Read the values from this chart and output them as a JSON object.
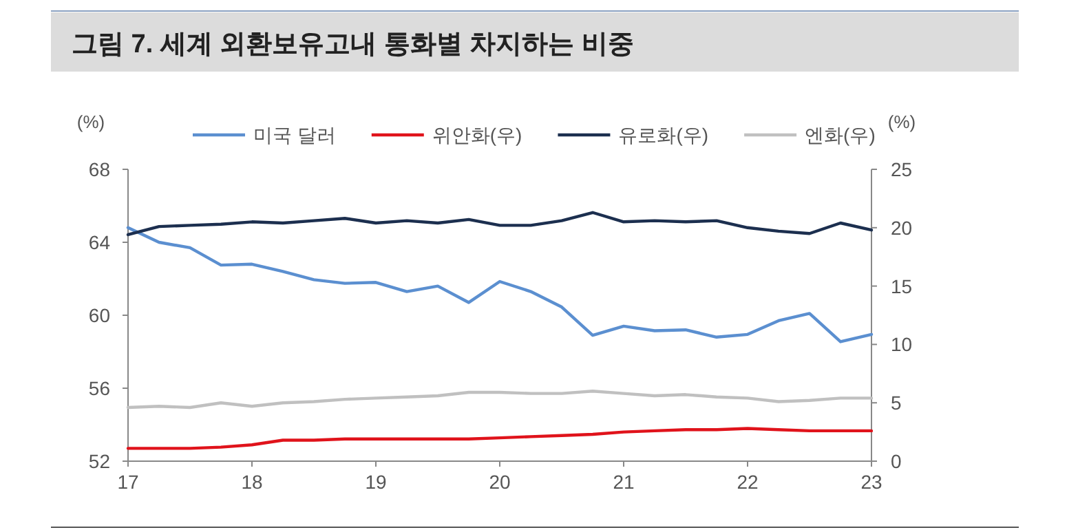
{
  "chart_data": {
    "type": "line",
    "title": "그림 7. 세계 외환보유고내 통화별 차지하는 비중",
    "ylabel": "(%)",
    "y2label": "(%)",
    "x": [
      2017,
      2017.25,
      2017.5,
      2017.75,
      2018,
      2018.25,
      2018.5,
      2018.75,
      2019,
      2019.25,
      2019.5,
      2019.75,
      2020,
      2020.25,
      2020.5,
      2020.75,
      2021,
      2021.25,
      2021.5,
      2021.75,
      2022,
      2022.25,
      2022.5,
      2022.75,
      2023
    ],
    "xlim": [
      2017,
      2023
    ],
    "xticks": [
      {
        "value": 2017,
        "label": "17"
      },
      {
        "value": 2018,
        "label": "18"
      },
      {
        "value": 2019,
        "label": "19"
      },
      {
        "value": 2020,
        "label": "20"
      },
      {
        "value": 2021,
        "label": "21"
      },
      {
        "value": 2022,
        "label": "22"
      },
      {
        "value": 2023,
        "label": "23"
      }
    ],
    "ylim": [
      52,
      68
    ],
    "yticks": [
      52,
      56,
      60,
      64,
      68
    ],
    "y2lim": [
      0,
      25
    ],
    "y2ticks": [
      0,
      5,
      10,
      15,
      20,
      25
    ],
    "legend": "top",
    "grid": false,
    "series": [
      {
        "name": "미국 달러",
        "color": "#5b8fd0",
        "values": [
          64.8,
          64.0,
          63.7,
          62.75,
          62.8,
          62.4,
          61.95,
          61.75,
          61.8,
          61.3,
          61.6,
          60.7,
          61.85,
          61.3,
          60.45,
          58.9,
          59.4,
          59.15,
          59.2,
          58.8,
          58.95,
          59.7,
          60.1,
          58.55,
          58.95
        ]
      },
      {
        "name": "위안화(우)",
        "color": "#e0131b",
        "axis": "y2",
        "values": [
          1.1,
          1.1,
          1.1,
          1.2,
          1.4,
          1.8,
          1.8,
          1.9,
          1.9,
          1.9,
          1.9,
          1.9,
          2.0,
          2.1,
          2.2,
          2.3,
          2.5,
          2.6,
          2.7,
          2.7,
          2.8,
          2.7,
          2.6,
          2.6,
          2.6
        ]
      },
      {
        "name": "유로화(우)",
        "color": "#1c2f4f",
        "axis": "y2",
        "values": [
          19.4,
          20.1,
          20.2,
          20.3,
          20.5,
          20.4,
          20.6,
          20.8,
          20.4,
          20.6,
          20.4,
          20.7,
          20.2,
          20.2,
          20.6,
          21.3,
          20.5,
          20.6,
          20.5,
          20.6,
          20.0,
          19.7,
          19.5,
          20.4,
          19.8
        ]
      },
      {
        "name": "엔화(우)",
        "color": "#c0c0c0",
        "axis": "y2",
        "values": [
          4.6,
          4.7,
          4.6,
          5.0,
          4.7,
          5.0,
          5.1,
          5.3,
          5.4,
          5.5,
          5.6,
          5.9,
          5.9,
          5.8,
          5.8,
          6.0,
          5.8,
          5.6,
          5.7,
          5.5,
          5.4,
          5.1,
          5.2,
          5.4,
          5.4
        ]
      }
    ]
  }
}
